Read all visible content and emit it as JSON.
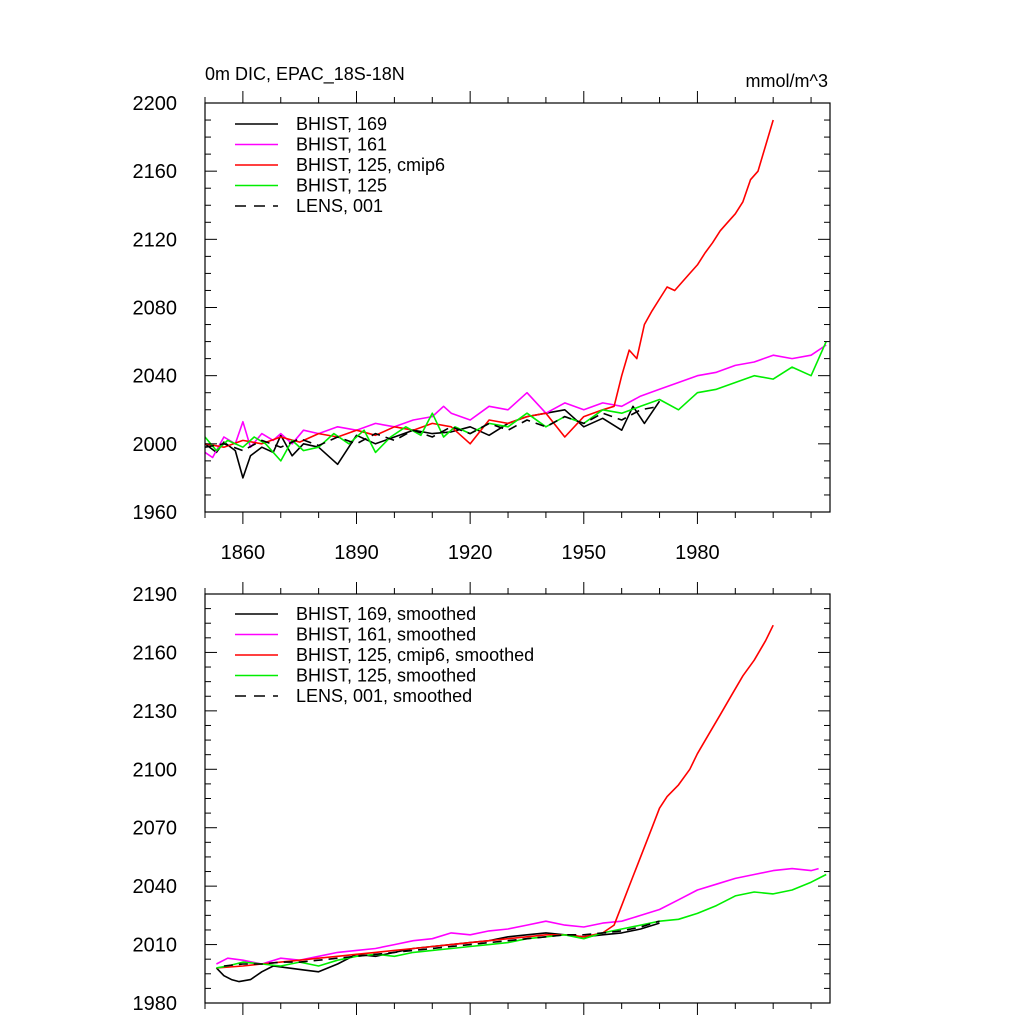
{
  "chart_data": [
    {
      "type": "line",
      "title": "0m DIC, EPAC_18S-18N",
      "units": "mmol/m^3",
      "xlim": [
        1850,
        2015
      ],
      "ylim": [
        1960,
        2200
      ],
      "xticks": [
        1860,
        1890,
        1920,
        1950,
        1980
      ],
      "yticks": [
        1960,
        2000,
        2040,
        2080,
        2120,
        2160,
        2200
      ],
      "series": [
        {
          "name": "BHIST, 169",
          "color": "#000000",
          "dash": "solid",
          "x": [
            1850,
            1853,
            1855,
            1858,
            1860,
            1862,
            1865,
            1868,
            1870,
            1873,
            1876,
            1880,
            1885,
            1890,
            1895,
            1900,
            1905,
            1910,
            1915,
            1920,
            1925,
            1930,
            1935,
            1940,
            1945,
            1950,
            1955,
            1960,
            1963,
            1966,
            1970
          ],
          "y": [
            2000,
            1995,
            2001,
            1996,
            1980,
            1993,
            1998,
            1995,
            2005,
            1993,
            2000,
            1998,
            1988,
            2005,
            2000,
            2004,
            2008,
            2006,
            2007,
            2010,
            2005,
            2012,
            2016,
            2018,
            2020,
            2010,
            2015,
            2008,
            2022,
            2012,
            2025
          ]
        },
        {
          "name": "BHIST, 161",
          "color": "#ff00ff",
          "dash": "solid",
          "x": [
            1850,
            1852,
            1855,
            1858,
            1860,
            1862,
            1865,
            1868,
            1870,
            1873,
            1876,
            1880,
            1885,
            1890,
            1895,
            1900,
            1905,
            1910,
            1913,
            1915,
            1920,
            1925,
            1930,
            1935,
            1940,
            1945,
            1950,
            1955,
            1960,
            1965,
            1970,
            1975,
            1980,
            1985,
            1990,
            1995,
            2000,
            2005,
            2010,
            2014
          ],
          "y": [
            1995,
            1992,
            2004,
            2000,
            2013,
            1998,
            2006,
            2002,
            2006,
            2000,
            2008,
            2006,
            2010,
            2008,
            2012,
            2010,
            2014,
            2016,
            2022,
            2018,
            2014,
            2022,
            2020,
            2030,
            2018,
            2024,
            2020,
            2024,
            2022,
            2028,
            2032,
            2036,
            2040,
            2042,
            2046,
            2048,
            2052,
            2050,
            2052,
            2058
          ]
        },
        {
          "name": "BHIST, 125, cmip6",
          "color": "#ff0000",
          "dash": "solid",
          "x": [
            1850,
            1855,
            1860,
            1865,
            1870,
            1875,
            1880,
            1885,
            1890,
            1895,
            1900,
            1905,
            1910,
            1915,
            1920,
            1925,
            1930,
            1935,
            1940,
            1945,
            1950,
            1955,
            1958,
            1960,
            1962,
            1964,
            1966,
            1968,
            1970,
            1972,
            1974,
            1976,
            1978,
            1980,
            1982,
            1984,
            1986,
            1988,
            1990,
            1992,
            1994,
            1996,
            1998,
            2000
          ],
          "y": [
            2000,
            1998,
            2002,
            2000,
            2004,
            2001,
            2006,
            2004,
            2008,
            2005,
            2010,
            2008,
            2012,
            2010,
            2000,
            2014,
            2012,
            2016,
            2018,
            2004,
            2016,
            2020,
            2022,
            2040,
            2055,
            2050,
            2070,
            2078,
            2085,
            2092,
            2090,
            2095,
            2100,
            2105,
            2112,
            2118,
            2125,
            2130,
            2135,
            2142,
            2155,
            2160,
            2175,
            2190
          ]
        },
        {
          "name": "BHIST, 125",
          "color": "#00ee00",
          "dash": "solid",
          "x": [
            1850,
            1853,
            1856,
            1860,
            1863,
            1866,
            1870,
            1873,
            1876,
            1880,
            1884,
            1888,
            1892,
            1895,
            1899,
            1903,
            1907,
            1910,
            1913,
            1916,
            1920,
            1925,
            1930,
            1935,
            1940,
            1945,
            1950,
            1955,
            1960,
            1965,
            1970,
            1975,
            1980,
            1985,
            1990,
            1995,
            2000,
            2005,
            2010,
            2014
          ],
          "y": [
            2004,
            1996,
            2002,
            1998,
            2004,
            2000,
            1990,
            2002,
            1996,
            1998,
            2006,
            2000,
            2008,
            1995,
            2004,
            2010,
            2005,
            2018,
            2004,
            2010,
            2006,
            2012,
            2010,
            2018,
            2010,
            2016,
            2012,
            2020,
            2018,
            2022,
            2026,
            2020,
            2030,
            2032,
            2036,
            2040,
            2038,
            2045,
            2040,
            2060
          ]
        },
        {
          "name": "LENS, 001",
          "color": "#000000",
          "dash": "dashed",
          "x": [
            1850,
            1855,
            1860,
            1865,
            1870,
            1875,
            1880,
            1885,
            1890,
            1895,
            1900,
            1905,
            1910,
            1915,
            1920,
            1925,
            1930,
            1935,
            1940,
            1945,
            1950,
            1955,
            1960,
            1965,
            1970
          ],
          "y": [
            1998,
            2000,
            1996,
            2002,
            1998,
            2003,
            1999,
            2004,
            2000,
            2006,
            2002,
            2008,
            2004,
            2010,
            2006,
            2012,
            2008,
            2014,
            2010,
            2016,
            2012,
            2018,
            2014,
            2020,
            2022
          ]
        }
      ]
    },
    {
      "type": "line",
      "xlim": [
        1850,
        2015
      ],
      "ylim": [
        1980,
        2190
      ],
      "xticks": [
        1860,
        1890,
        1920,
        1950,
        1980
      ],
      "yticks": [
        1980,
        2010,
        2040,
        2070,
        2100,
        2130,
        2160,
        2190
      ],
      "series": [
        {
          "name": "BHIST, 169, smoothed",
          "color": "#000000",
          "dash": "solid",
          "x": [
            1853,
            1855,
            1857,
            1859,
            1862,
            1865,
            1868,
            1872,
            1876,
            1880,
            1885,
            1890,
            1895,
            1900,
            1905,
            1910,
            1915,
            1920,
            1925,
            1930,
            1935,
            1940,
            1945,
            1950,
            1955,
            1960,
            1965,
            1970
          ],
          "y": [
            1998,
            1994,
            1992,
            1991,
            1992,
            1996,
            1999,
            1998,
            1997,
            1996,
            2000,
            2005,
            2004,
            2006,
            2008,
            2009,
            2010,
            2011,
            2012,
            2014,
            2015,
            2016,
            2015,
            2014,
            2015,
            2016,
            2018,
            2021
          ]
        },
        {
          "name": "BHIST, 161, smoothed",
          "color": "#ff00ff",
          "dash": "solid",
          "x": [
            1853,
            1856,
            1860,
            1865,
            1870,
            1875,
            1880,
            1885,
            1890,
            1895,
            1900,
            1905,
            1910,
            1915,
            1920,
            1925,
            1930,
            1935,
            1940,
            1945,
            1950,
            1955,
            1960,
            1965,
            1970,
            1975,
            1980,
            1985,
            1990,
            1995,
            2000,
            2005,
            2010,
            2012
          ],
          "y": [
            2000,
            2003,
            2002,
            2000,
            2003,
            2002,
            2004,
            2006,
            2007,
            2008,
            2010,
            2012,
            2013,
            2016,
            2015,
            2017,
            2018,
            2020,
            2022,
            2020,
            2019,
            2021,
            2022,
            2025,
            2028,
            2033,
            2038,
            2041,
            2044,
            2046,
            2048,
            2049,
            2048,
            2049
          ]
        },
        {
          "name": "BHIST, 125, cmip6, smoothed",
          "color": "#ff0000",
          "dash": "solid",
          "x": [
            1853,
            1860,
            1865,
            1870,
            1875,
            1880,
            1885,
            1890,
            1895,
            1900,
            1905,
            1910,
            1915,
            1920,
            1925,
            1930,
            1935,
            1940,
            1945,
            1950,
            1955,
            1958,
            1960,
            1962,
            1964,
            1966,
            1968,
            1970,
            1972,
            1975,
            1978,
            1980,
            1983,
            1986,
            1989,
            1992,
            1995,
            1998,
            2000
          ],
          "y": [
            1998,
            1999,
            2000,
            2001,
            2002,
            2003,
            2004,
            2005,
            2006,
            2007,
            2008,
            2009,
            2010,
            2011,
            2012,
            2013,
            2014,
            2015,
            2015,
            2014,
            2016,
            2020,
            2030,
            2040,
            2050,
            2060,
            2070,
            2080,
            2086,
            2092,
            2100,
            2108,
            2118,
            2128,
            2138,
            2148,
            2156,
            2166,
            2174
          ]
        },
        {
          "name": "BHIST, 125, smoothed",
          "color": "#00ee00",
          "dash": "solid",
          "x": [
            1853,
            1856,
            1860,
            1865,
            1870,
            1875,
            1880,
            1885,
            1890,
            1895,
            1900,
            1905,
            1910,
            1915,
            1920,
            1925,
            1930,
            1935,
            1940,
            1945,
            1950,
            1955,
            1960,
            1965,
            1970,
            1975,
            1980,
            1985,
            1990,
            1995,
            2000,
            2005,
            2010,
            2014
          ],
          "y": [
            1998,
            1999,
            2001,
            2000,
            1999,
            2001,
            1999,
            2002,
            2004,
            2005,
            2004,
            2006,
            2007,
            2008,
            2009,
            2010,
            2011,
            2013,
            2014,
            2015,
            2013,
            2016,
            2018,
            2020,
            2022,
            2023,
            2026,
            2030,
            2035,
            2037,
            2036,
            2038,
            2042,
            2046
          ]
        },
        {
          "name": "LENS, 001, smoothed",
          "color": "#000000",
          "dash": "dashed",
          "x": [
            1855,
            1860,
            1865,
            1870,
            1875,
            1880,
            1885,
            1890,
            1895,
            1900,
            1905,
            1910,
            1915,
            1920,
            1925,
            1930,
            1935,
            1940,
            1945,
            1950,
            1955,
            1960,
            1965,
            1970
          ],
          "y": [
            1999,
            2000,
            2000,
            2001,
            2001,
            2002,
            2003,
            2004,
            2005,
            2006,
            2007,
            2008,
            2009,
            2010,
            2011,
            2012,
            2013,
            2014,
            2015,
            2015,
            2016,
            2017,
            2019,
            2022
          ]
        }
      ]
    }
  ]
}
